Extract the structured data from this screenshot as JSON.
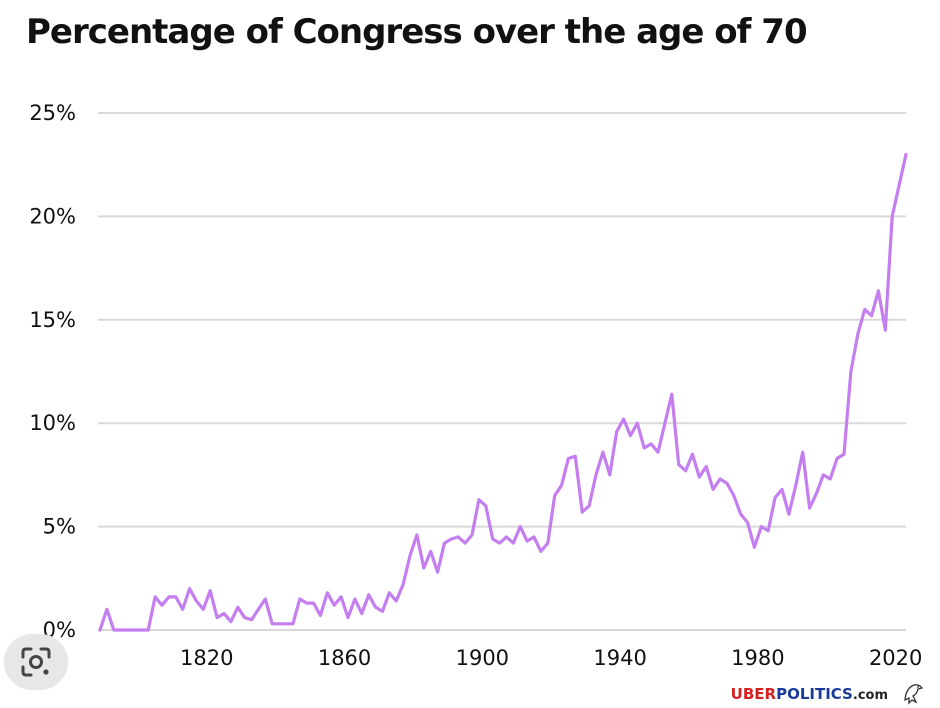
{
  "title": "Percentage of Congress over the age of 70",
  "watermark": {
    "part1": "UBER",
    "part2": "POLITICS",
    "part3": ".com"
  },
  "colors": {
    "line": "#c57ef0",
    "grid": "#d9d9d9",
    "text": "#111111"
  },
  "icons": {
    "lens": "google-lens-icon",
    "eagle": "eagle-logo"
  },
  "chart_data": {
    "type": "line",
    "title": "Percentage of Congress over the age of 70",
    "xlabel": "",
    "ylabel": "",
    "xlim": [
      1789,
      2023
    ],
    "ylim": [
      0,
      25
    ],
    "x_ticks": [
      1820,
      1860,
      1900,
      1940,
      1980,
      2020
    ],
    "x_tick_labels": [
      "1820",
      "1860",
      "1900",
      "1940",
      "1980",
      "2020"
    ],
    "y_ticks": [
      0,
      5,
      10,
      15,
      20,
      25
    ],
    "y_tick_labels": [
      "0%",
      "5%",
      "10%",
      "15%",
      "20%",
      "25%"
    ],
    "grid": true,
    "series": [
      {
        "x": [
          1789,
          1791,
          1793,
          1795,
          1797,
          1799,
          1801,
          1803,
          1805,
          1807,
          1809,
          1811,
          1813,
          1815,
          1817,
          1819,
          1821,
          1823,
          1825,
          1827,
          1829,
          1831,
          1833,
          1835,
          1837,
          1839,
          1841,
          1843,
          1845,
          1847,
          1849,
          1851,
          1853,
          1855,
          1857,
          1859,
          1861,
          1863,
          1865,
          1867,
          1869,
          1871,
          1873,
          1875,
          1877,
          1879,
          1881,
          1883,
          1885,
          1887,
          1889,
          1891,
          1893,
          1895,
          1897,
          1899,
          1901,
          1903,
          1905,
          1907,
          1909,
          1911,
          1913,
          1915,
          1917,
          1919,
          1921,
          1923,
          1925,
          1927,
          1929,
          1931,
          1933,
          1935,
          1937,
          1939,
          1941,
          1943,
          1945,
          1947,
          1949,
          1951,
          1953,
          1955,
          1957,
          1959,
          1961,
          1963,
          1965,
          1967,
          1969,
          1971,
          1973,
          1975,
          1977,
          1979,
          1981,
          1983,
          1985,
          1987,
          1989,
          1991,
          1993,
          1995,
          1997,
          1999,
          2001,
          2003,
          2005,
          2007,
          2009,
          2011,
          2013,
          2015,
          2017,
          2019,
          2021,
          2023
        ],
        "y": [
          0,
          1.0,
          0,
          0,
          0,
          0,
          0,
          0,
          1.6,
          1.2,
          1.6,
          1.6,
          1.0,
          2.0,
          1.4,
          1.0,
          1.9,
          0.6,
          0.8,
          0.4,
          1.1,
          0.6,
          0.5,
          1.0,
          1.5,
          0.3,
          0.3,
          0.3,
          0.3,
          1.5,
          1.3,
          1.3,
          0.7,
          1.8,
          1.2,
          1.6,
          0.6,
          1.5,
          0.8,
          1.7,
          1.1,
          0.9,
          1.8,
          1.4,
          2.2,
          3.6,
          4.6,
          3.0,
          3.8,
          2.8,
          4.2,
          4.4,
          4.5,
          4.2,
          4.6,
          6.3,
          6.0,
          4.4,
          4.2,
          4.5,
          4.2,
          5.0,
          4.3,
          4.5,
          3.8,
          4.2,
          6.5,
          7.0,
          8.3,
          8.4,
          5.7,
          6.0,
          7.5,
          8.6,
          7.5,
          9.6,
          10.2,
          9.4,
          10.0,
          8.8,
          9.0,
          8.6,
          10.0,
          11.4,
          8.0,
          7.7,
          8.5,
          7.4,
          7.9,
          6.8,
          7.3,
          7.1,
          6.5,
          5.6,
          5.2,
          4.0,
          5.0,
          4.8,
          6.4,
          6.8,
          5.6,
          7.0,
          8.6,
          5.9,
          6.6,
          7.5,
          7.3,
          8.3,
          8.5,
          12.5,
          14.3,
          15.5,
          15.2,
          16.4,
          14.5,
          20.0,
          21.5,
          23.0
        ]
      }
    ]
  }
}
